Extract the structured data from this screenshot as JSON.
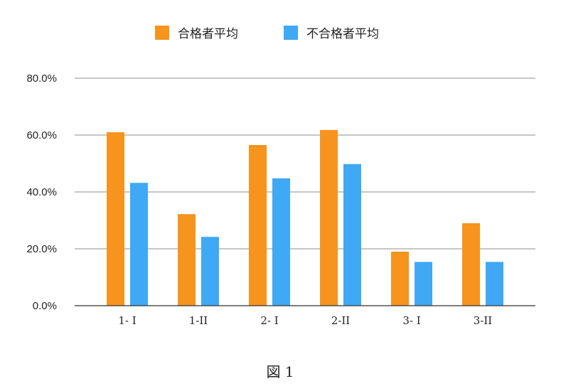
{
  "figure_caption": "図 1",
  "colors": {
    "series1": "#F7941D",
    "series2": "#3FA9F5",
    "grid": "#8C8C8C",
    "axis": "#333333"
  },
  "chart_data": {
    "type": "bar",
    "categories": [
      "1- I",
      "1-II",
      "2- I",
      "2-II",
      "3- I",
      "3-II"
    ],
    "series": [
      {
        "name": "合格者平均",
        "values": [
          61.0,
          32.2,
          56.5,
          61.8,
          19.0,
          29.0
        ]
      },
      {
        "name": "不合格者平均",
        "values": [
          43.2,
          24.2,
          44.8,
          49.8,
          15.4,
          15.4
        ]
      }
    ],
    "ylim": [
      0,
      80
    ],
    "yticks": [
      "0.0%",
      "20.0%",
      "40.0%",
      "60.0%",
      "80.0%"
    ],
    "grid": true,
    "legend_position": "top-center",
    "title": "",
    "xlabel": "",
    "ylabel": ""
  }
}
